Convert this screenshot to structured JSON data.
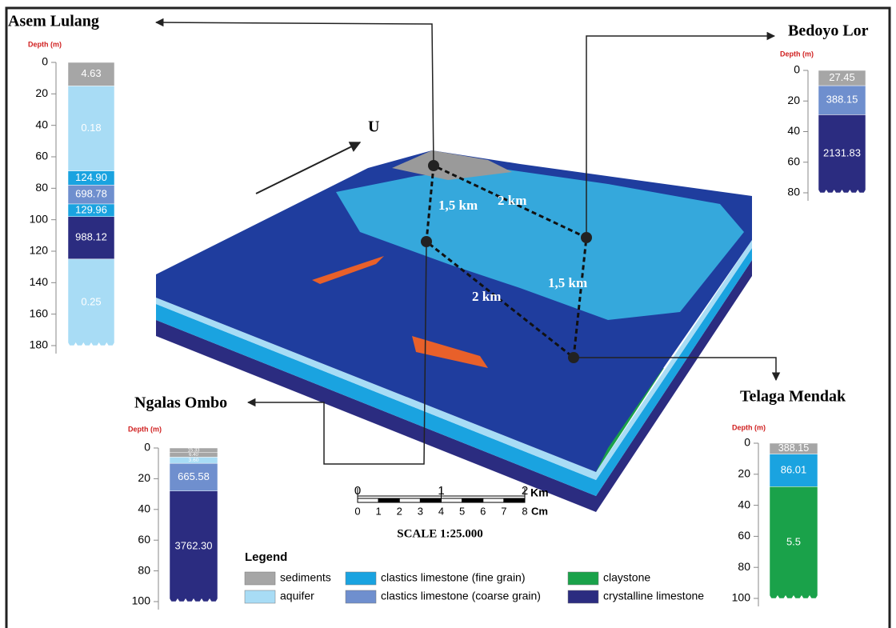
{
  "wells": [
    {
      "name": "Asem Lulang",
      "depth_label": "Depth (m)",
      "ylim": [
        0,
        180
      ],
      "yticks": [
        0,
        20,
        40,
        60,
        80,
        100,
        120,
        140,
        160,
        180
      ],
      "layers": [
        {
          "top": 0,
          "bottom": 15,
          "label": "4.63",
          "color": "#a6a6a6"
        },
        {
          "top": 15,
          "bottom": 69,
          "label": "0.18",
          "color": "#a8dcf5"
        },
        {
          "top": 69,
          "bottom": 78,
          "label": "124.90",
          "color": "#1aa3e0"
        },
        {
          "top": 78,
          "bottom": 90,
          "label": "698.78",
          "color": "#6f8fce"
        },
        {
          "top": 90,
          "bottom": 98,
          "label": "129.96",
          "color": "#1aa3e0"
        },
        {
          "top": 98,
          "bottom": 125,
          "label": "988.12",
          "color": "#2b2c80"
        },
        {
          "top": 125,
          "bottom": 180,
          "label": "0.25",
          "color": "#a8dcf5"
        }
      ]
    },
    {
      "name": "Bedoyo Lor",
      "depth_label": "Depth (m)",
      "ylim": [
        0,
        80
      ],
      "yticks": [
        0,
        20,
        40,
        60,
        80
      ],
      "layers": [
        {
          "top": 0,
          "bottom": 10,
          "label": "27.45",
          "color": "#a6a6a6"
        },
        {
          "top": 10,
          "bottom": 29,
          "label": "388.15",
          "color": "#6f8fce"
        },
        {
          "top": 29,
          "bottom": 80,
          "label": "2131.83",
          "color": "#2b2c80"
        }
      ]
    },
    {
      "name": "Ngalas Ombo",
      "depth_label": "Depth (m)",
      "ylim": [
        0,
        100
      ],
      "yticks": [
        0,
        20,
        40,
        60,
        80,
        100
      ],
      "layers": [
        {
          "top": 0,
          "bottom": 3,
          "label": "15.33",
          "color": "#a6a6a6"
        },
        {
          "top": 3,
          "bottom": 6,
          "label": "6.40",
          "color": "#a6a6a6"
        },
        {
          "top": 6,
          "bottom": 10,
          "label": "3.60",
          "color": "#a8dcf5"
        },
        {
          "top": 10,
          "bottom": 28,
          "label": "665.58",
          "color": "#6f8fce"
        },
        {
          "top": 28,
          "bottom": 100,
          "label": "3762.30",
          "color": "#2b2c80"
        }
      ]
    },
    {
      "name": "Telaga Mendak",
      "depth_label": "Depth (m)",
      "ylim": [
        0,
        100
      ],
      "yticks": [
        0,
        20,
        40,
        60,
        80,
        100
      ],
      "layers": [
        {
          "top": 0,
          "bottom": 7,
          "label": "388.15",
          "color": "#a6a6a6"
        },
        {
          "top": 7,
          "bottom": 28,
          "label": "86.01",
          "color": "#1aa3e0"
        },
        {
          "top": 28,
          "bottom": 100,
          "label": "5.5",
          "color": "#1aa24a"
        }
      ]
    }
  ],
  "block": {
    "north": "U",
    "distances": [
      "1,5 km",
      "2 km",
      "2 km",
      "1,5 km"
    ]
  },
  "scale": {
    "km": [
      0,
      1,
      2
    ],
    "km_unit": "Km",
    "cm": [
      0,
      1,
      2,
      3,
      4,
      5,
      6,
      7,
      8
    ],
    "cm_unit": "Cm",
    "title": "SCALE 1:25.000"
  },
  "legend": {
    "title": "Legend",
    "items": [
      {
        "label": "sediments",
        "color": "#a6a6a6"
      },
      {
        "label": "aquifer",
        "color": "#a8dcf5"
      },
      {
        "label": "clastics limestone (fine grain)",
        "color": "#1aa3e0"
      },
      {
        "label": "clastics limestone (coarse grain)",
        "color": "#6f8fce"
      },
      {
        "label": "claystone",
        "color": "#1aa24a"
      },
      {
        "label": "crystalline limestone",
        "color": "#2b2c80"
      }
    ]
  }
}
